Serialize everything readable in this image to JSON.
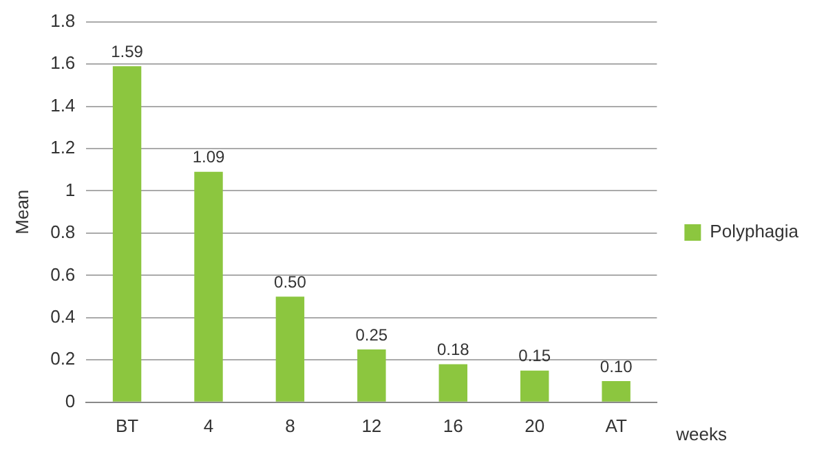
{
  "chart_data": {
    "type": "bar",
    "ylabel": "Mean",
    "xlabel": "weeks",
    "categories": [
      "BT",
      "4",
      "8",
      "12",
      "16",
      "20",
      "AT"
    ],
    "series": [
      {
        "name": "Polyphagia",
        "color": "#8cc63f",
        "values": [
          1.59,
          1.09,
          0.5,
          0.25,
          0.18,
          0.15,
          0.1
        ],
        "value_labels": [
          "1.59",
          "1.09",
          "0.50",
          "0.25",
          "0.18",
          "0.15",
          "0.10"
        ]
      }
    ],
    "ylim": [
      0,
      1.8
    ],
    "yticks": [
      0,
      0.2,
      0.4,
      0.6,
      0.8,
      1,
      1.2,
      1.4,
      1.6,
      1.8
    ],
    "grid": "y",
    "legend": "right"
  }
}
